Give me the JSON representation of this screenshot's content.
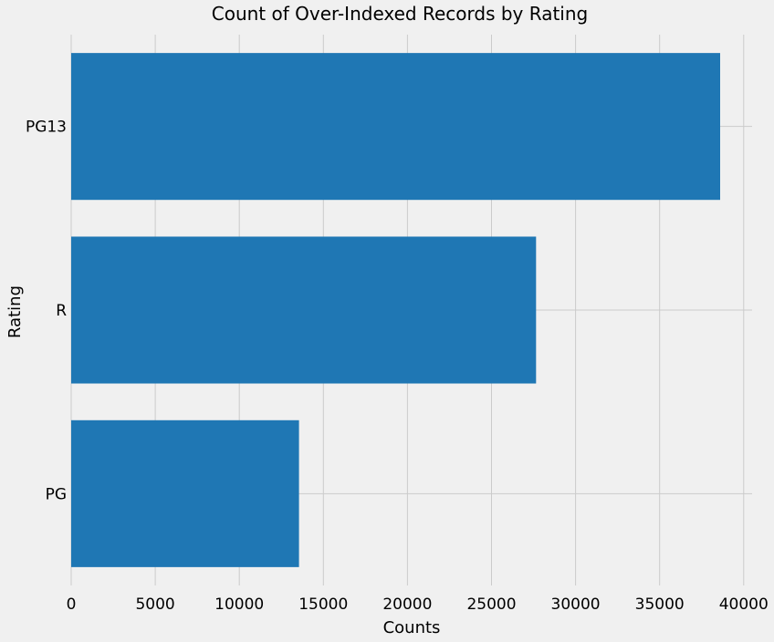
{
  "chart_data": {
    "type": "bar",
    "orientation": "horizontal",
    "title": "Count of Over-Indexed Records by Rating",
    "xlabel": "Counts",
    "ylabel": "Rating",
    "categories": [
      "PG13",
      "R",
      "PG"
    ],
    "values": [
      38600,
      27650,
      13550
    ],
    "xlim": [
      0,
      40500
    ],
    "xticks": [
      0,
      5000,
      10000,
      15000,
      20000,
      25000,
      30000,
      35000,
      40000
    ],
    "grid": true,
    "bar_color": "#1f77b4",
    "background": "#f0f0f0"
  }
}
